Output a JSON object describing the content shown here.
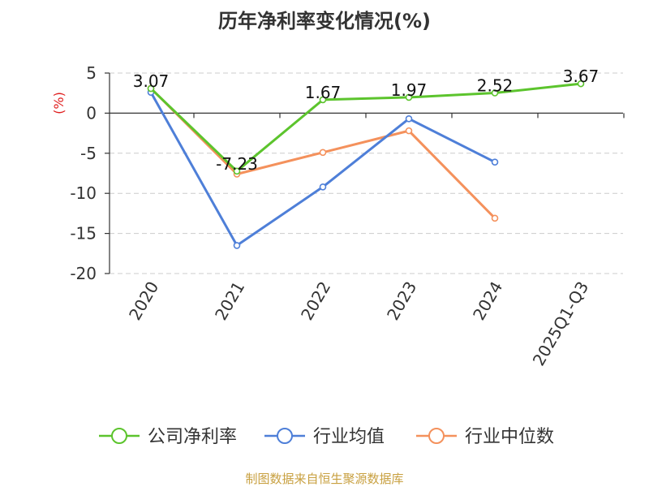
{
  "chart_data": {
    "type": "line",
    "title": "历年净利率变化情况(%)",
    "ylabel": "(%)",
    "xlabel": "",
    "categories": [
      "2020",
      "2021",
      "2022",
      "2023",
      "2024",
      "2025Q1-Q3"
    ],
    "ylim": [
      -20,
      5
    ],
    "yticks": [
      5,
      0,
      -5,
      -10,
      -15,
      -20
    ],
    "grid": true,
    "legend_position": "bottom",
    "series": [
      {
        "name": "公司净利率",
        "color": "#5cc42d",
        "values": [
          3.07,
          -7.23,
          1.67,
          1.97,
          2.52,
          3.67
        ],
        "labels": [
          "3.07",
          "-7.23",
          "1.67",
          "1.97",
          "2.52",
          "3.67"
        ]
      },
      {
        "name": "行业均值",
        "color": "#4e7fd8",
        "values": [
          2.6,
          -16.5,
          -9.2,
          -0.7,
          -6.1,
          null
        ]
      },
      {
        "name": "行业中位数",
        "color": "#f4915c",
        "values": [
          3.1,
          -7.6,
          -4.9,
          -2.2,
          -13.1,
          null
        ]
      }
    ],
    "source": "制图数据来自恒生聚源数据库"
  }
}
